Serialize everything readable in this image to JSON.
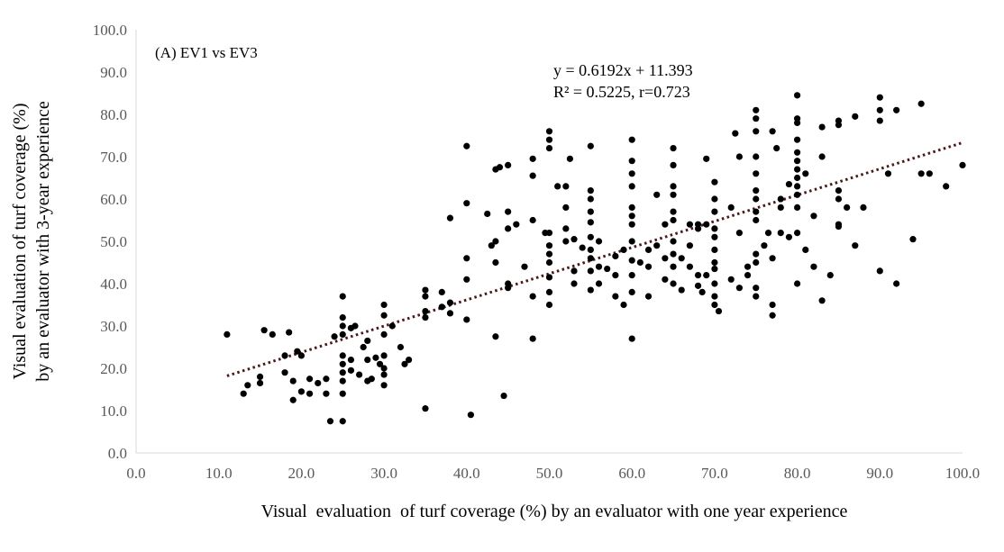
{
  "chart_data": {
    "type": "scatter",
    "annotation": "(A) EV1 vs EV3",
    "equation": "y = 0.6192x + 11.393",
    "r_squared_text": "R² = 0.5225, r=0.723",
    "xlabel": "Visual  evaluation  of turf coverage (%) by an evaluator with one year experience",
    "ylabel_lines": [
      "Visual evaluation of turf coverage (%)",
      "by an evaluator with 3-year experience"
    ],
    "xlim": [
      0,
      100
    ],
    "ylim": [
      0,
      100
    ],
    "x_ticks": [
      "0.0",
      "10.0",
      "20.0",
      "30.0",
      "40.0",
      "50.0",
      "60.0",
      "70.0",
      "80.0",
      "90.0",
      "100.0"
    ],
    "y_ticks": [
      "0.0",
      "10.0",
      "20.0",
      "30.0",
      "40.0",
      "50.0",
      "60.0",
      "70.0",
      "80.0",
      "90.0",
      "100.0"
    ],
    "grid": false,
    "trendline": {
      "slope": 0.6192,
      "intercept": 11.393,
      "x_range": [
        11,
        100
      ],
      "style": "dotted",
      "color": "#4a1a1a"
    },
    "marker_color": "#000000",
    "points": [
      [
        11,
        28
      ],
      [
        13,
        14
      ],
      [
        13.5,
        16
      ],
      [
        15,
        18
      ],
      [
        15,
        16.5
      ],
      [
        15.5,
        29
      ],
      [
        16.5,
        28
      ],
      [
        18,
        23
      ],
      [
        18,
        19
      ],
      [
        18.5,
        28.5
      ],
      [
        19,
        17
      ],
      [
        19,
        12.5
      ],
      [
        19.5,
        24
      ],
      [
        20,
        14.5
      ],
      [
        20,
        23
      ],
      [
        21,
        17.5
      ],
      [
        21,
        14
      ],
      [
        22,
        16.5
      ],
      [
        23,
        17.5
      ],
      [
        23,
        14
      ],
      [
        23.5,
        7.5
      ],
      [
        24,
        27.5
      ],
      [
        25,
        37
      ],
      [
        25,
        32
      ],
      [
        25,
        30
      ],
      [
        25,
        28
      ],
      [
        25,
        23
      ],
      [
        25,
        21
      ],
      [
        25,
        19
      ],
      [
        25,
        17
      ],
      [
        25,
        14
      ],
      [
        25,
        7.5
      ],
      [
        26,
        29.5
      ],
      [
        26,
        22
      ],
      [
        26,
        19.5
      ],
      [
        26.5,
        30
      ],
      [
        27,
        18.5
      ],
      [
        27.5,
        25
      ],
      [
        28,
        26.5
      ],
      [
        28,
        17
      ],
      [
        28,
        22
      ],
      [
        28.5,
        17.5
      ],
      [
        29,
        22.5
      ],
      [
        29.5,
        21
      ],
      [
        30,
        35
      ],
      [
        30,
        32.5
      ],
      [
        30,
        28
      ],
      [
        30,
        23
      ],
      [
        30,
        20
      ],
      [
        30,
        18.5
      ],
      [
        30,
        16
      ],
      [
        31,
        30
      ],
      [
        32,
        25
      ],
      [
        32.5,
        21
      ],
      [
        33,
        22
      ],
      [
        35,
        38.5
      ],
      [
        35,
        37
      ],
      [
        35,
        33.5
      ],
      [
        35,
        32
      ],
      [
        35,
        10.5
      ],
      [
        37,
        38
      ],
      [
        37,
        34.5
      ],
      [
        38,
        35.5
      ],
      [
        38,
        33
      ],
      [
        38,
        55.5
      ],
      [
        40,
        72.5
      ],
      [
        40,
        59
      ],
      [
        40,
        46
      ],
      [
        40,
        41
      ],
      [
        40,
        31.5
      ],
      [
        40.5,
        9
      ],
      [
        42.5,
        56.5
      ],
      [
        43,
        49
      ],
      [
        43.5,
        50
      ],
      [
        43.5,
        27.5
      ],
      [
        43.5,
        45
      ],
      [
        43.5,
        67
      ],
      [
        44,
        67.5
      ],
      [
        44.5,
        13.5
      ],
      [
        45,
        57
      ],
      [
        45,
        53
      ],
      [
        45,
        40
      ],
      [
        45,
        39
      ],
      [
        45,
        68
      ],
      [
        46,
        54
      ],
      [
        47,
        44
      ],
      [
        48,
        27
      ],
      [
        48,
        37
      ],
      [
        48,
        55
      ],
      [
        48,
        65.5
      ],
      [
        48,
        69.5
      ],
      [
        49.5,
        52
      ],
      [
        50,
        76
      ],
      [
        50,
        74
      ],
      [
        50,
        72
      ],
      [
        50,
        52
      ],
      [
        50,
        49
      ],
      [
        50,
        47
      ],
      [
        50,
        45
      ],
      [
        50,
        41.5
      ],
      [
        50,
        38
      ],
      [
        50,
        35
      ],
      [
        51,
        63
      ],
      [
        52,
        63
      ],
      [
        52,
        58
      ],
      [
        52,
        53
      ],
      [
        52,
        50
      ],
      [
        52.5,
        69.5
      ],
      [
        53,
        43
      ],
      [
        53,
        50.5
      ],
      [
        53,
        40
      ],
      [
        54,
        48.5
      ],
      [
        55,
        72.5
      ],
      [
        55,
        62
      ],
      [
        55,
        60
      ],
      [
        55,
        57
      ],
      [
        55,
        54.5
      ],
      [
        55,
        51
      ],
      [
        55,
        48
      ],
      [
        55,
        46
      ],
      [
        55,
        43
      ],
      [
        55,
        38.5
      ],
      [
        56,
        50
      ],
      [
        56,
        44
      ],
      [
        56,
        40
      ],
      [
        57,
        43.5
      ],
      [
        58,
        46.5
      ],
      [
        58,
        42
      ],
      [
        58,
        37
      ],
      [
        59,
        48
      ],
      [
        59,
        35
      ],
      [
        60,
        74
      ],
      [
        60,
        69
      ],
      [
        60,
        66
      ],
      [
        60,
        63
      ],
      [
        60,
        58
      ],
      [
        60,
        56
      ],
      [
        60,
        54
      ],
      [
        60,
        50
      ],
      [
        60,
        45.5
      ],
      [
        60,
        42
      ],
      [
        60,
        38
      ],
      [
        60,
        27
      ],
      [
        61,
        45
      ],
      [
        62,
        48
      ],
      [
        62,
        44
      ],
      [
        62,
        37
      ],
      [
        63,
        49
      ],
      [
        63,
        61
      ],
      [
        64,
        54
      ],
      [
        64,
        46
      ],
      [
        64,
        41
      ],
      [
        65,
        72
      ],
      [
        65,
        68
      ],
      [
        65,
        63
      ],
      [
        65,
        61
      ],
      [
        65,
        57
      ],
      [
        65,
        55
      ],
      [
        65,
        50
      ],
      [
        65,
        47
      ],
      [
        65,
        44
      ],
      [
        65,
        40
      ],
      [
        66,
        46
      ],
      [
        66,
        38.5
      ],
      [
        67,
        54
      ],
      [
        67,
        49
      ],
      [
        67,
        44
      ],
      [
        68,
        54
      ],
      [
        68,
        53
      ],
      [
        68,
        42
      ],
      [
        68,
        39.5
      ],
      [
        68.5,
        38
      ],
      [
        69,
        69.5
      ],
      [
        69,
        54
      ],
      [
        69,
        42
      ],
      [
        70,
        64
      ],
      [
        70,
        60
      ],
      [
        70,
        57
      ],
      [
        70,
        53
      ],
      [
        70,
        51
      ],
      [
        70,
        48
      ],
      [
        70,
        45
      ],
      [
        70,
        43.5
      ],
      [
        70,
        40
      ],
      [
        70,
        37
      ],
      [
        70,
        35
      ],
      [
        70.5,
        33.5
      ],
      [
        72,
        58
      ],
      [
        72,
        41
      ],
      [
        72.5,
        75.5
      ],
      [
        73,
        70
      ],
      [
        73,
        52
      ],
      [
        73,
        39
      ],
      [
        74,
        44
      ],
      [
        74,
        42
      ],
      [
        75,
        81
      ],
      [
        75,
        79
      ],
      [
        75,
        76
      ],
      [
        75,
        70
      ],
      [
        75,
        66
      ],
      [
        75,
        62
      ],
      [
        75,
        60
      ],
      [
        75,
        57
      ],
      [
        75,
        55
      ],
      [
        75,
        47
      ],
      [
        75,
        45
      ],
      [
        75,
        39
      ],
      [
        75,
        37
      ],
      [
        76,
        49
      ],
      [
        76.5,
        52
      ],
      [
        77,
        46
      ],
      [
        77,
        76
      ],
      [
        77,
        35
      ],
      [
        77,
        32.5
      ],
      [
        77.5,
        72
      ],
      [
        78,
        60
      ],
      [
        78,
        58
      ],
      [
        78,
        52
      ],
      [
        79,
        63.5
      ],
      [
        79,
        51
      ],
      [
        80,
        84.5
      ],
      [
        80,
        79
      ],
      [
        80,
        78
      ],
      [
        80,
        74
      ],
      [
        80,
        71
      ],
      [
        80,
        69
      ],
      [
        80,
        67
      ],
      [
        80,
        65
      ],
      [
        80,
        63
      ],
      [
        80,
        61
      ],
      [
        80,
        58
      ],
      [
        80,
        52
      ],
      [
        80,
        40
      ],
      [
        81,
        66
      ],
      [
        81,
        48
      ],
      [
        82,
        56
      ],
      [
        82,
        44
      ],
      [
        83,
        70
      ],
      [
        83,
        77
      ],
      [
        83,
        36
      ],
      [
        84,
        42
      ],
      [
        85,
        78.5
      ],
      [
        85,
        77.5
      ],
      [
        85,
        62
      ],
      [
        85,
        60
      ],
      [
        85,
        54
      ],
      [
        85,
        53.5
      ],
      [
        86,
        58
      ],
      [
        87,
        79.5
      ],
      [
        87,
        49
      ],
      [
        88,
        58
      ],
      [
        90,
        84
      ],
      [
        90,
        81
      ],
      [
        90,
        78.5
      ],
      [
        90,
        43
      ],
      [
        91,
        66
      ],
      [
        92,
        81
      ],
      [
        92,
        40
      ],
      [
        94,
        50.5
      ],
      [
        95,
        82.5
      ],
      [
        95,
        66
      ],
      [
        96,
        66
      ],
      [
        98,
        63
      ],
      [
        100,
        68
      ]
    ]
  }
}
